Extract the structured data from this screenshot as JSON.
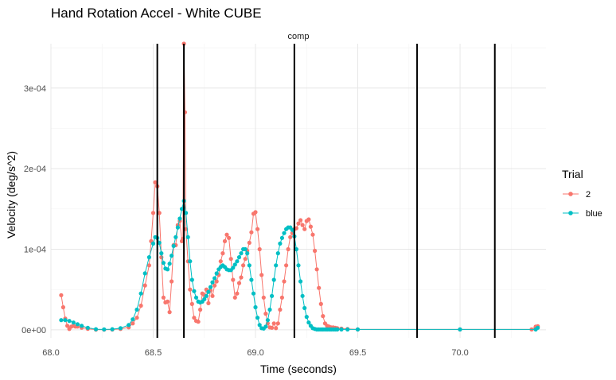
{
  "chart_data": {
    "type": "line",
    "title": "Hand Rotation Accel - White CUBE",
    "facet_label": "comp",
    "xlabel": "Time (seconds)",
    "ylabel": "Velocity (deg/s^2)",
    "xlim": [
      68.0,
      70.42
    ],
    "ylim": [
      -1e-05,
      0.000355
    ],
    "x_ticks": [
      {
        "value": 68.0,
        "label": "68.0"
      },
      {
        "value": 68.5,
        "label": "68.5"
      },
      {
        "value": 69.0,
        "label": "69.0"
      },
      {
        "value": 69.5,
        "label": "69.5"
      },
      {
        "value": 70.0,
        "label": "70.0"
      }
    ],
    "y_ticks": [
      {
        "value": 0,
        "label": "0e+00"
      },
      {
        "value": 0.0001,
        "label": "1e-04"
      },
      {
        "value": 0.0002,
        "label": "2e-04"
      },
      {
        "value": 0.0003,
        "label": "3e-04"
      }
    ],
    "grid": true,
    "legend": {
      "title": "Trial",
      "position": "right"
    },
    "vlines": [
      68.52,
      68.65,
      69.19,
      69.79,
      70.17
    ],
    "series": [
      {
        "name": "2",
        "color": "#F8766D",
        "x": [
          68.05,
          68.06,
          68.07,
          68.08,
          68.09,
          68.1,
          68.11,
          68.12,
          68.13,
          68.15,
          68.18,
          68.22,
          68.26,
          68.3,
          68.34,
          68.38,
          68.4,
          68.42,
          68.44,
          68.46,
          68.48,
          68.49,
          68.5,
          68.51,
          68.52,
          68.53,
          68.54,
          68.55,
          68.56,
          68.57,
          68.58,
          68.59,
          68.6,
          68.61,
          68.62,
          68.63,
          68.64,
          68.645,
          68.65,
          68.655,
          68.66,
          68.67,
          68.68,
          68.69,
          68.7,
          68.71,
          68.72,
          68.73,
          68.74,
          68.75,
          68.76,
          68.77,
          68.78,
          68.79,
          68.8,
          68.81,
          68.82,
          68.83,
          68.84,
          68.85,
          68.86,
          68.87,
          68.88,
          68.89,
          68.9,
          68.91,
          68.92,
          68.93,
          68.94,
          68.95,
          68.96,
          68.97,
          68.98,
          68.99,
          69.0,
          69.01,
          69.02,
          69.03,
          69.04,
          69.05,
          69.06,
          69.07,
          69.08,
          69.09,
          69.1,
          69.11,
          69.12,
          69.13,
          69.14,
          69.15,
          69.16,
          69.17,
          69.18,
          69.19,
          69.2,
          69.21,
          69.22,
          69.23,
          69.24,
          69.25,
          69.26,
          69.27,
          69.28,
          69.29,
          69.3,
          69.31,
          69.32,
          69.33,
          69.34,
          69.35,
          69.36,
          69.37,
          69.38,
          69.39,
          69.4,
          69.42,
          69.45,
          69.5,
          70.0,
          70.35,
          70.37,
          70.38
        ],
        "values": [
          4.3e-05,
          2.8e-05,
          1.4e-05,
          5e-06,
          1e-06,
          4e-06,
          5e-06,
          4e-06,
          4e-06,
          2.5e-06,
          1.2e-06,
          3e-07,
          2e-07,
          4e-07,
          1e-06,
          3e-06,
          8e-06,
          1.5e-05,
          3e-05,
          5.5e-05,
          8e-05,
          0.00011,
          0.000145,
          0.000183,
          0.000178,
          0.000145,
          9e-05,
          4e-05,
          3.4e-05,
          3.5e-05,
          2.2e-05,
          6e-05,
          0.000105,
          0.000105,
          0.00013,
          0.000135,
          0.00011,
          0.000113,
          0.000355,
          0.00027,
          0.000125,
          8.5e-05,
          5e-05,
          3.2e-05,
          1.5e-05,
          1.1e-05,
          1e-05,
          2.5e-05,
          4.5e-05,
          4.3e-05,
          5e-05,
          3.3e-05,
          4.9e-05,
          4.2e-05,
          5.5e-05,
          6e-05,
          6.8e-05,
          8.5e-05,
          9.5e-05,
          0.00011,
          0.000118,
          0.000114,
          8.8e-05,
          6.2e-05,
          4e-05,
          4.5e-05,
          5.8e-05,
          6.5e-05,
          8e-05,
          8.8e-05,
          9.8e-05,
          0.000108,
          0.000121,
          0.000144,
          0.000146,
          0.000125,
          0.0001,
          6.8e-05,
          4e-05,
          2e-05,
          8e-06,
          3e-06,
          2.5e-06,
          8e-06,
          2e-06,
          8e-06,
          2.5e-05,
          4e-05,
          6e-05,
          8e-05,
          0.0001,
          0.000115,
          0.00012,
          0.000125,
          0.000126,
          0.000132,
          0.000136,
          0.00013,
          0.000125,
          0.000135,
          0.000137,
          0.000128,
          0.000118,
          9.8e-05,
          7.5e-05,
          5.2e-05,
          3.2e-05,
          1.7e-05,
          8e-06,
          5e-06,
          4e-06,
          3e-06,
          3e-06,
          2.5e-06,
          2e-06,
          1.5e-06,
          1e-06,
          5e-07,
          5e-07,
          5e-07,
          4e-06,
          4.5e-06
        ]
      },
      {
        "name": "blue",
        "color": "#00BFC4",
        "x": [
          68.05,
          68.07,
          68.09,
          68.11,
          68.13,
          68.15,
          68.18,
          68.22,
          68.26,
          68.3,
          68.34,
          68.38,
          68.4,
          68.42,
          68.44,
          68.46,
          68.48,
          68.5,
          68.51,
          68.52,
          68.53,
          68.54,
          68.55,
          68.56,
          68.57,
          68.58,
          68.59,
          68.6,
          68.61,
          68.62,
          68.63,
          68.64,
          68.65,
          68.66,
          68.67,
          68.68,
          68.69,
          68.7,
          68.71,
          68.72,
          68.73,
          68.74,
          68.75,
          68.76,
          68.77,
          68.78,
          68.79,
          68.8,
          68.81,
          68.82,
          68.83,
          68.84,
          68.85,
          68.86,
          68.87,
          68.88,
          68.89,
          68.9,
          68.91,
          68.92,
          68.93,
          68.94,
          68.95,
          68.96,
          68.97,
          68.98,
          68.99,
          69.0,
          69.01,
          69.02,
          69.03,
          69.04,
          69.05,
          69.06,
          69.07,
          69.08,
          69.09,
          69.1,
          69.11,
          69.12,
          69.13,
          69.14,
          69.15,
          69.16,
          69.17,
          69.18,
          69.19,
          69.2,
          69.21,
          69.22,
          69.23,
          69.24,
          69.25,
          69.26,
          69.27,
          69.28,
          69.29,
          69.3,
          69.31,
          69.32,
          69.33,
          69.34,
          69.35,
          69.36,
          69.37,
          69.38,
          69.39,
          69.4,
          69.42,
          69.45,
          69.5,
          70.0,
          70.37,
          70.38
        ],
        "values": [
          1.2e-05,
          1.2e-05,
          1.1e-05,
          9e-06,
          7e-06,
          5e-06,
          2.5e-06,
          8e-07,
          5e-07,
          8e-07,
          2e-06,
          6e-06,
          1.3e-05,
          2.5e-05,
          4.5e-05,
          7e-05,
          9e-05,
          0.000107,
          0.000115,
          0.000114,
          0.000108,
          9.5e-05,
          8.3e-05,
          7.6e-05,
          7.5e-05,
          8.2e-05,
          9.2e-05,
          0.000104,
          0.000115,
          0.000127,
          0.000138,
          0.00015,
          0.00016,
          0.000145,
          0.000115,
          8.5e-05,
          6.2e-05,
          4.8e-05,
          4e-05,
          3.5e-05,
          3.4e-05,
          3.5e-05,
          3.8e-05,
          4.2e-05,
          4.7e-05,
          5.3e-05,
          5.9e-05,
          6.4e-05,
          7e-05,
          7.5e-05,
          7.8e-05,
          8e-05,
          7.8e-05,
          7.5e-05,
          7.4e-05,
          7.4e-05,
          7.7e-05,
          8.1e-05,
          8.5e-05,
          9e-05,
          9.5e-05,
          0.0001,
          0.0001,
          9.5e-05,
          8e-05,
          6.2e-05,
          4.5e-05,
          2.8e-05,
          1.5e-05,
          6e-06,
          2e-06,
          1.5e-06,
          4e-06,
          1.2e-05,
          2.5e-05,
          4.2e-05,
          6.2e-05,
          8e-05,
          9.5e-05,
          0.000107,
          0.000114,
          0.00012,
          0.000125,
          0.000127,
          0.000127,
          0.000124,
          0.000116,
          0.0001,
          8e-05,
          6e-05,
          4.2e-05,
          2.7e-05,
          1.6e-05,
          9e-06,
          5e-06,
          2e-06,
          1e-06,
          5e-07,
          5e-07,
          5e-07,
          5e-07,
          5e-07,
          5e-07,
          5e-07,
          5e-07,
          5e-07,
          5e-07,
          5e-07,
          5e-07,
          5e-07,
          5e-07,
          5e-07,
          5e-07,
          2.5e-06
        ]
      }
    ]
  }
}
